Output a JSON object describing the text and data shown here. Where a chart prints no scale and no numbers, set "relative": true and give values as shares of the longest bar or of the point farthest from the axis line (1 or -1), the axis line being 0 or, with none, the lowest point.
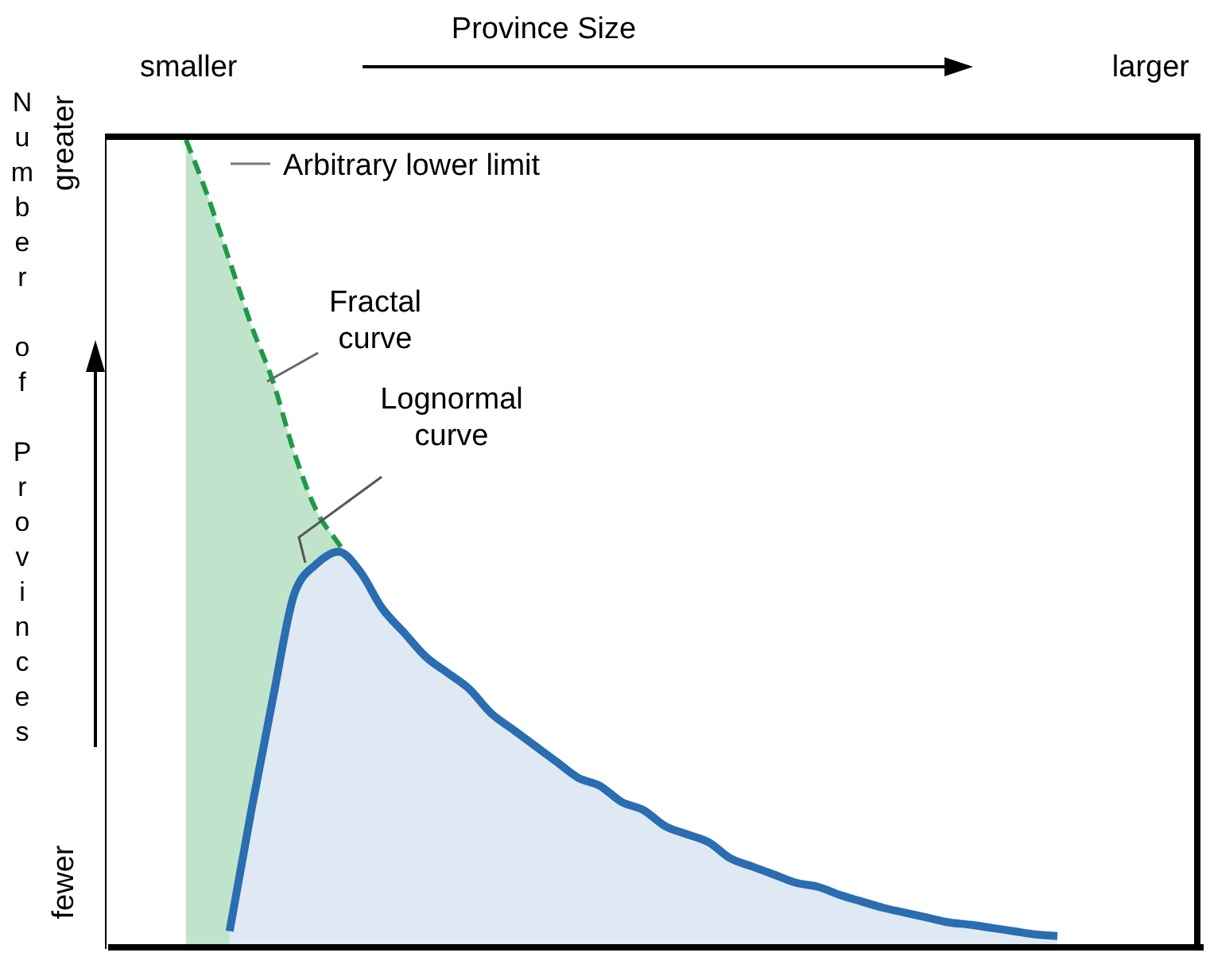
{
  "chart_data": {
    "type": "area",
    "relative": true,
    "xlabel": "Province Size",
    "ylabel": "Number of Provinces",
    "categories": [
      null,
      null,
      null,
      null,
      null,
      null,
      null,
      null,
      null,
      null,
      null,
      null,
      null,
      null,
      null,
      null,
      null,
      null,
      null,
      null,
      null,
      null,
      null,
      null,
      null,
      null,
      null,
      null,
      null,
      null,
      null,
      null,
      null,
      null,
      null,
      null,
      null,
      null,
      null,
      null,
      null
    ],
    "series": [
      {
        "name": "Fractal curve",
        "color": "#1e9a46",
        "line_style": "dashed",
        "values": [
          1.0,
          0.93,
          0.85,
          0.77,
          0.7,
          0.61,
          0.54,
          0.5,
          0.46,
          0.42,
          0.39,
          0.36,
          0.34,
          0.32,
          0.29,
          0.27,
          0.25,
          0.23,
          0.21,
          0.2,
          0.18,
          0.17,
          0.15,
          0.14,
          0.13,
          0.11,
          0.1,
          0.09,
          0.08,
          0.075,
          0.065,
          0.057,
          0.049,
          0.043,
          0.037,
          0.031,
          0.028,
          0.024,
          0.02,
          0.016,
          0.014
        ]
      },
      {
        "name": "Lognormal curve",
        "color": "#2a6db0",
        "line_style": "solid",
        "values": [
          null,
          null,
          0.02,
          0.17,
          0.31,
          0.44,
          0.475,
          0.49,
          0.465,
          0.42,
          0.39,
          0.36,
          0.34,
          0.32,
          0.29,
          0.27,
          0.25,
          0.23,
          0.21,
          0.2,
          0.18,
          0.17,
          0.15,
          0.14,
          0.13,
          0.11,
          0.1,
          0.09,
          0.08,
          0.075,
          0.065,
          0.057,
          0.049,
          0.043,
          0.037,
          0.031,
          0.028,
          0.024,
          0.02,
          0.016,
          0.014
        ]
      }
    ],
    "annotations": [
      "Arbitrary lower limit",
      "smaller",
      "larger",
      "greater",
      "fewer"
    ],
    "grid": false
  }
}
